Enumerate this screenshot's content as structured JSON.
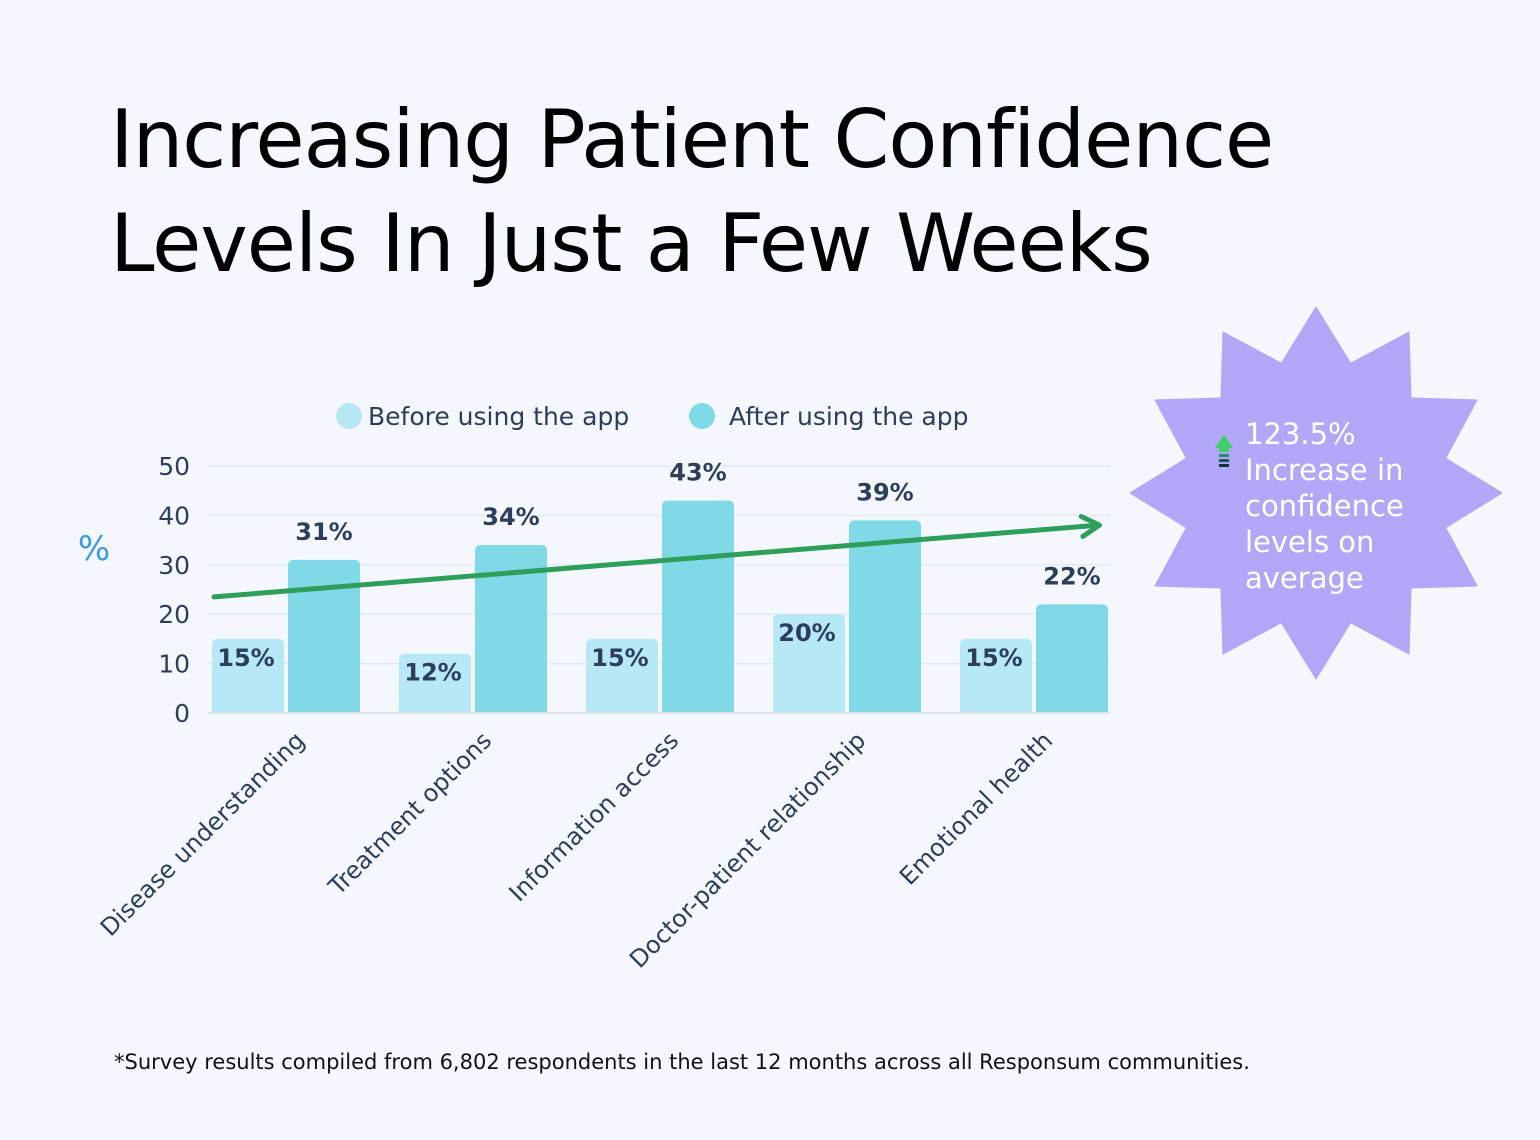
{
  "title": {
    "line1": "Increasing Patient Confidence",
    "line2": "Levels In Just a Few Weeks"
  },
  "colors": {
    "background": "#f4f7fd",
    "before": "#b7e8f6",
    "after": "#7fd9e6",
    "trend": "#2e9e5b",
    "badge": "#b0a8f7",
    "label": "#2c3e5a",
    "unit": "#3a9be0"
  },
  "chart_data": {
    "type": "bar",
    "ylabel": "%",
    "ylim": [
      0,
      50
    ],
    "yticks": [
      0,
      10,
      20,
      30,
      40,
      50
    ],
    "grid": true,
    "legend_position": "top-center",
    "categories": [
      "Disease understanding",
      "Treatment options",
      "Information access",
      "Doctor-patient relationship",
      "Emotional health"
    ],
    "series": [
      {
        "name": "Before using the app",
        "values": [
          15,
          12,
          15,
          20,
          15
        ],
        "labels": [
          "15%",
          "12%",
          "15%",
          "20%",
          "15%"
        ]
      },
      {
        "name": "After using the app",
        "values": [
          31,
          34,
          43,
          39,
          22
        ],
        "labels": [
          "31%",
          "34%",
          "43%",
          "39%",
          "22%"
        ]
      }
    ],
    "trend_line": {
      "from": 23.5,
      "to": 38
    }
  },
  "badge": {
    "icon": "up-arrow-icon",
    "lines": [
      "123.5%",
      "Increase in",
      "confidence",
      "levels on",
      "average"
    ]
  },
  "footnote": "*Survey results compiled from 6,802 respondents in the last 12 months across all Responsum communities."
}
